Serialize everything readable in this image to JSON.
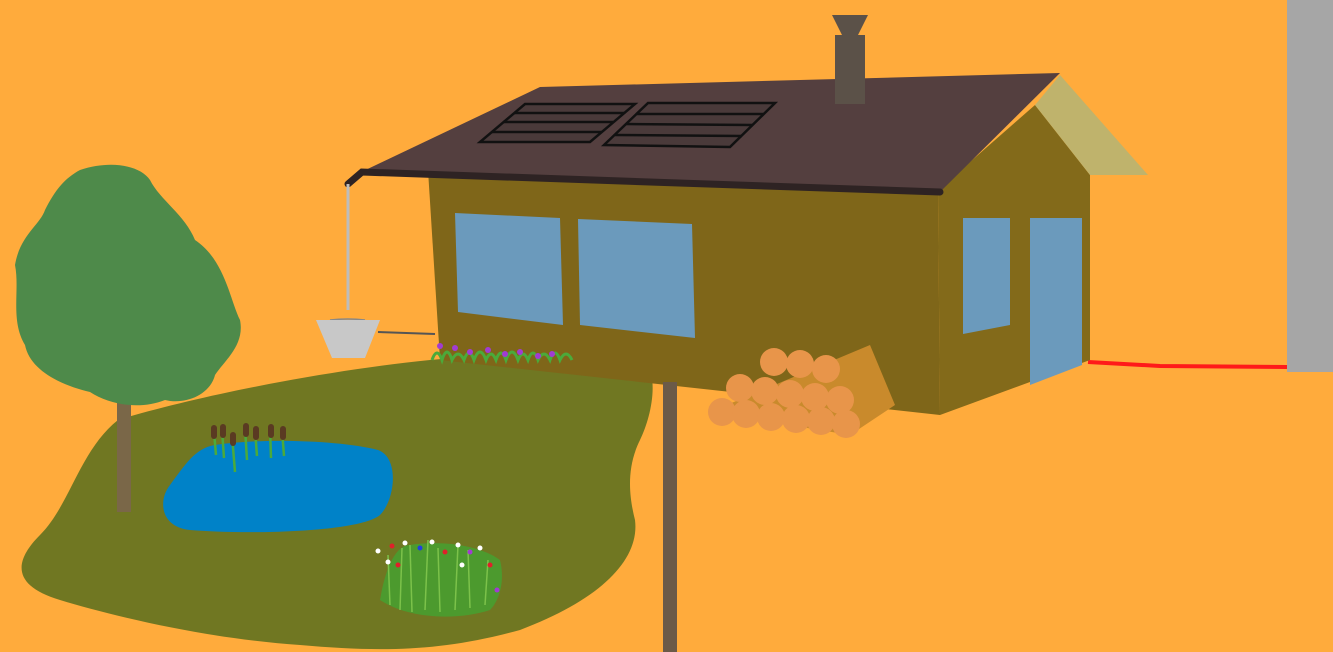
{
  "scene": {
    "description_visible_text": "",
    "colors": {
      "sky": "#FFAB3C",
      "lawn": "#707722",
      "pond": "#0082C8",
      "house_wall": "#7F6619",
      "house_wall_side": "#836A1A",
      "roof": "#543F3F",
      "gable": "#BFB36C",
      "window": "#6B9ABC",
      "chimney": "#5B5148",
      "tree_foliage": "#4E8A4A",
      "trunk": "#7A6748",
      "pole": "#6B5A48",
      "bucket": "#C8C8C8",
      "firewood": "#E8954A",
      "cable": "#FF1A1A",
      "utility_pole": "#A6A6A6"
    },
    "icons": [
      "tree-icon",
      "pond-icon",
      "cattail-icon",
      "house-icon",
      "solar-panel-icon",
      "chimney-icon",
      "rain-bucket-icon",
      "firewood-icon",
      "wildflower-icon",
      "utility-pole-icon"
    ]
  }
}
